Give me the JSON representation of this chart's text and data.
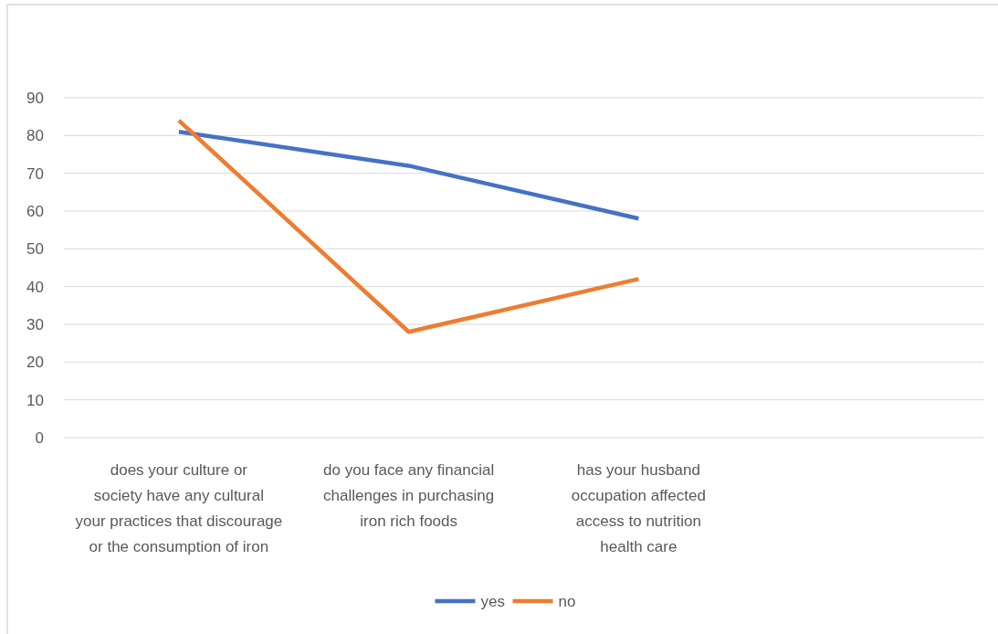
{
  "chart_data": {
    "type": "line",
    "categories": [
      "does your culture or\nsociety have any cultural\nyour practices that  discourage\nor the consumption of iron",
      "do you face any financial\nchallenges in purchasing\niron rich foods",
      "has your husband\noccupation affected\naccess to nutrition\nhealth care",
      null
    ],
    "series": [
      {
        "name": "yes",
        "color": "#4472c4",
        "values": [
          81,
          72,
          58,
          null
        ]
      },
      {
        "name": "no",
        "color": "#ed7d31",
        "values": [
          84,
          28,
          42,
          null
        ]
      }
    ],
    "ylim": [
      0,
      90
    ],
    "yticks": [
      0,
      10,
      20,
      30,
      40,
      50,
      60,
      70,
      80,
      90
    ],
    "grid": "y",
    "legend": "bottom",
    "marker": "none",
    "line_style": "solid"
  }
}
